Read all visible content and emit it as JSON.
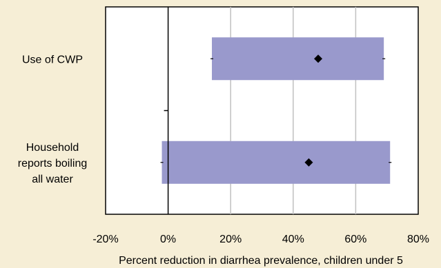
{
  "chart_data": {
    "type": "bar",
    "subtype": "horizontal-range",
    "xlabel": "Percent reduction in diarrhea prevalence, children under 5",
    "xlim": [
      -20,
      80
    ],
    "xticks": [
      -20,
      0,
      20,
      40,
      60,
      80
    ],
    "xtick_labels": [
      "-20%",
      "0%",
      "20%",
      "40%",
      "60%",
      "80%"
    ],
    "grid": true,
    "categories": [
      {
        "label_lines": [
          "Use of CWP"
        ],
        "low": 14,
        "high": 69,
        "estimate": 48
      },
      {
        "label_lines": [
          "Household",
          "reports boiling",
          "all water"
        ],
        "low": -2,
        "high": 71,
        "estimate": 45
      }
    ],
    "colors": {
      "background": "#f6eed6",
      "plot_area": "#ffffff",
      "bar": "#9999cc",
      "marker": "#000000",
      "grid": "#c0c0c0"
    }
  }
}
